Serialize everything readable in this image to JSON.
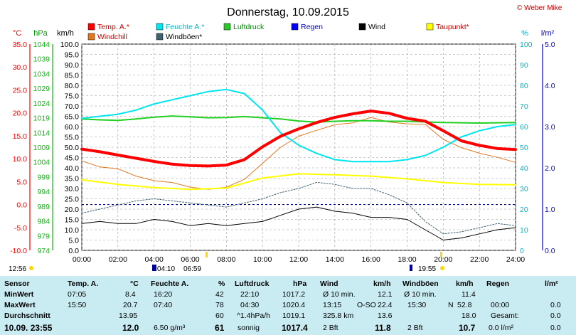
{
  "chart_data": {
    "type": "line",
    "title": "Donnerstag, 10.09.2015",
    "copyright": "© Weber Mike",
    "x_ticks": [
      "00:00",
      "02:00",
      "04:00",
      "06:00",
      "08:00",
      "10:00",
      "12:00",
      "14:00",
      "16:00",
      "18:00",
      "20:00",
      "22:00",
      "24:00"
    ],
    "axes": {
      "celsius": {
        "label": "°C",
        "ticks": [
          "35.0",
          "30.0",
          "25.0",
          "20.0",
          "15.0",
          "10.0",
          "5.0",
          "0.0",
          "-5.0",
          "-10.0"
        ],
        "range": [
          -10,
          35
        ],
        "color": "#ff0000"
      },
      "hpa": {
        "label": "hPa",
        "ticks": [
          "1044",
          "1039",
          "1034",
          "1029",
          "1024",
          "1019",
          "1014",
          "1009",
          "1004",
          "999",
          "994",
          "989",
          "984",
          "979",
          "974"
        ],
        "range": [
          974,
          1044
        ],
        "color": "#00c000"
      },
      "kmh": {
        "label": "km/h",
        "ticks": [
          "100.0",
          "95.0",
          "90.0",
          "85.0",
          "80.0",
          "75.0",
          "70.0",
          "65.0",
          "60.0",
          "55.0",
          "50.0",
          "45.0",
          "40.0",
          "35.0",
          "30.0",
          "25.0",
          "20.0",
          "15.0",
          "10.0",
          "5.0",
          "0.0"
        ],
        "range": [
          0,
          100
        ],
        "color": "#000000"
      },
      "percent": {
        "label": "%",
        "ticks": [
          "100",
          "90",
          "80",
          "70",
          "60",
          "50",
          "40",
          "30",
          "20",
          "10",
          "0"
        ],
        "range": [
          0,
          100
        ],
        "color": "#00c8dc"
      },
      "lm2": {
        "label": "l/m²",
        "ticks": [
          "5.0",
          "4.0",
          "3.0",
          "2.0",
          "1.0",
          "0.0"
        ],
        "range": [
          0,
          5
        ],
        "color": "#0000c0"
      }
    },
    "legend": [
      {
        "name": "Temp. A.*",
        "color": "#ff0000"
      },
      {
        "name": "Feuchte A.*",
        "color": "#00e5f0"
      },
      {
        "name": "Luftdruck",
        "color": "#20d020"
      },
      {
        "name": "Regen",
        "color": "#0000ff"
      },
      {
        "name": "Wind",
        "color": "#000000"
      },
      {
        "name": "Taupunkt*",
        "color": "#ffff00"
      },
      {
        "name": "Windchill",
        "color": "#e07820"
      },
      {
        "name": "Windböen*",
        "color": "#406070"
      }
    ],
    "series": [
      {
        "name": "Temp. A.*",
        "axis": "celsius",
        "color": "#ff0000",
        "width": 4,
        "x": [
          0,
          1,
          2,
          3,
          4,
          5,
          6,
          7,
          8,
          9,
          10,
          11,
          12,
          13,
          14,
          15,
          16,
          17,
          18,
          19,
          20,
          21,
          22,
          23,
          24
        ],
        "y": [
          12.1,
          11.5,
          10.8,
          10.1,
          9.4,
          8.8,
          8.5,
          8.4,
          8.6,
          9.8,
          12.6,
          14.9,
          16.5,
          17.9,
          19.0,
          19.8,
          20.4,
          19.9,
          18.8,
          18.2,
          16.1,
          13.9,
          12.9,
          12.2,
          12.0
        ]
      },
      {
        "name": "Feuchte A.*",
        "axis": "percent",
        "color": "#00e5f0",
        "width": 2,
        "x": [
          0,
          1,
          2,
          3,
          4,
          5,
          6,
          7,
          8,
          9,
          10,
          11,
          12,
          13,
          14,
          15,
          16,
          17,
          18,
          19,
          20,
          21,
          22,
          23,
          24
        ],
        "y": [
          64,
          65,
          66,
          68,
          71,
          73,
          75,
          77,
          78,
          76,
          68,
          57,
          51,
          47,
          44,
          43,
          43,
          43,
          44,
          46,
          50,
          55,
          58,
          60,
          61
        ]
      },
      {
        "name": "Luftdruck",
        "axis": "hpa",
        "color": "#20d020",
        "width": 2,
        "x": [
          0,
          1,
          2,
          3,
          4,
          5,
          6,
          7,
          8,
          9,
          10,
          11,
          12,
          13,
          14,
          15,
          16,
          17,
          18,
          19,
          20,
          21,
          22,
          23,
          24
        ],
        "y": [
          1018.6,
          1018.3,
          1018.1,
          1018.6,
          1019.2,
          1019.6,
          1019.3,
          1019.0,
          1019.1,
          1019.4,
          1019.0,
          1018.6,
          1017.9,
          1017.5,
          1017.8,
          1018.0,
          1018.0,
          1017.8,
          1017.8,
          1017.6,
          1017.4,
          1017.3,
          1017.2,
          1017.3,
          1017.4
        ]
      },
      {
        "name": "Taupunkt*",
        "axis": "celsius",
        "color": "#ffff00",
        "width": 2,
        "x": [
          0,
          2,
          4,
          6,
          8,
          10,
          12,
          14,
          16,
          18,
          20,
          22,
          24
        ],
        "y": [
          5.4,
          4.4,
          3.7,
          3.3,
          3.6,
          5.8,
          6.7,
          6.5,
          6.2,
          5.6,
          4.8,
          4.4,
          4.3
        ]
      },
      {
        "name": "Windchill",
        "axis": "celsius",
        "color": "#e07820",
        "width": 1,
        "x": [
          0,
          1,
          2,
          3,
          4,
          5,
          6,
          7,
          8,
          9,
          10,
          11,
          12,
          13,
          14,
          15,
          16,
          17,
          18,
          19,
          20,
          21,
          22,
          23,
          24
        ],
        "y": [
          9.5,
          8.2,
          7.8,
          6.2,
          5.2,
          4.8,
          3.8,
          3.3,
          3.8,
          5.5,
          9.0,
          12.5,
          14.9,
          16.2,
          17.4,
          17.8,
          19.0,
          18.0,
          17.6,
          17.5,
          14.2,
          12.4,
          11.2,
          10.3,
          9.2
        ]
      },
      {
        "name": "Wind",
        "axis": "kmh",
        "color": "#000000",
        "width": 1,
        "x": [
          0,
          1,
          2,
          3,
          4,
          5,
          6,
          7,
          8,
          9,
          10,
          11,
          12,
          13,
          14,
          15,
          16,
          17,
          18,
          19,
          20,
          21,
          22,
          23,
          24
        ],
        "y": [
          13,
          14,
          13,
          13,
          15,
          14,
          12,
          13,
          12,
          13,
          14,
          17,
          20,
          21,
          19,
          18,
          16,
          16,
          15,
          10,
          5,
          6,
          8,
          10,
          11
        ]
      },
      {
        "name": "Windböen*",
        "axis": "kmh",
        "color": "#406070",
        "width": 1,
        "dash": "2,2",
        "x": [
          0,
          1,
          2,
          3,
          4,
          5,
          6,
          7,
          8,
          9,
          10,
          11,
          12,
          13,
          14,
          15,
          16,
          17,
          18,
          19,
          20,
          21,
          22,
          23,
          24
        ],
        "y": [
          18,
          20,
          22,
          24,
          25,
          24,
          23,
          22,
          21,
          23,
          25,
          28,
          30,
          33,
          32,
          30,
          30,
          27,
          23,
          14,
          8,
          9,
          11,
          13,
          12
        ]
      }
    ],
    "reference_lines": [
      {
        "axis": "celsius",
        "y": 0,
        "color": "#0000c0",
        "dash": "3,3"
      }
    ],
    "markers": {
      "sunrise": "06:59",
      "sunset": "19:55",
      "time_a": "04:10",
      "time_b": "12:56"
    },
    "x_range": [
      0,
      24
    ],
    "grid": true
  },
  "table": {
    "headers": {
      "sensor": "Sensor",
      "temp": "Temp. A.",
      "temp_unit": "°C",
      "feuchte": "Feuchte A.",
      "feuchte_unit": "%",
      "luft": "Luftdruck",
      "luft_unit": "hPa",
      "wind": "Wind",
      "wind_unit": "km/h",
      "boen": "Windböen",
      "boen_unit": "km/h",
      "regen": "Regen",
      "regen_unit": "l/m²"
    },
    "rows": [
      {
        "label": "MinWert",
        "temp_time": "07:05",
        "temp_val": "8.4",
        "feuchte_time": "16:20",
        "feuchte_val": "42",
        "luft_time": "22:10",
        "luft_val": "1017.2",
        "wind_a": "Ø 10 min.",
        "wind_val": "12.1",
        "boen_a": "Ø 10 min.",
        "boen_val": "11.4",
        "regen_a": "",
        "regen_val": ""
      },
      {
        "label": "MaxWert",
        "temp_time": "15:50",
        "temp_val": "20.7",
        "feuchte_time": "07:40",
        "feuchte_val": "78",
        "luft_time": "04:30",
        "luft_val": "1020.4",
        "wind_a": "13:15",
        "wind_b": "O-SO",
        "wind_c": "22.4",
        "boen_a": "15:30",
        "boen_b": "N",
        "boen_c": "52.8",
        "regen_a": "00:00",
        "regen_val": "0.0"
      },
      {
        "label": "Durchschnitt",
        "temp_val": "13.95",
        "feuchte_val": "60",
        "luft_a": "^1.4hPa/h",
        "luft_val": "1019.1",
        "wind_a": "325.8 km",
        "wind_val": "13.6",
        "boen_val": "18.0",
        "regen_a": "Gesamt:",
        "regen_val": "0.0"
      },
      {
        "label": "10.09. 23:55",
        "temp_val": "12.0",
        "feuchte_a": "6.50 g/m³",
        "feuchte_val": "61",
        "luft_a": "sonnig",
        "luft_val": "1017.4",
        "wind_a": "2 Bft",
        "wind_val": "11.8",
        "boen_a": "2 Bft",
        "boen_val": "10.7",
        "regen_a": "0.0 l/m²",
        "regen_val": "0.0"
      }
    ]
  }
}
